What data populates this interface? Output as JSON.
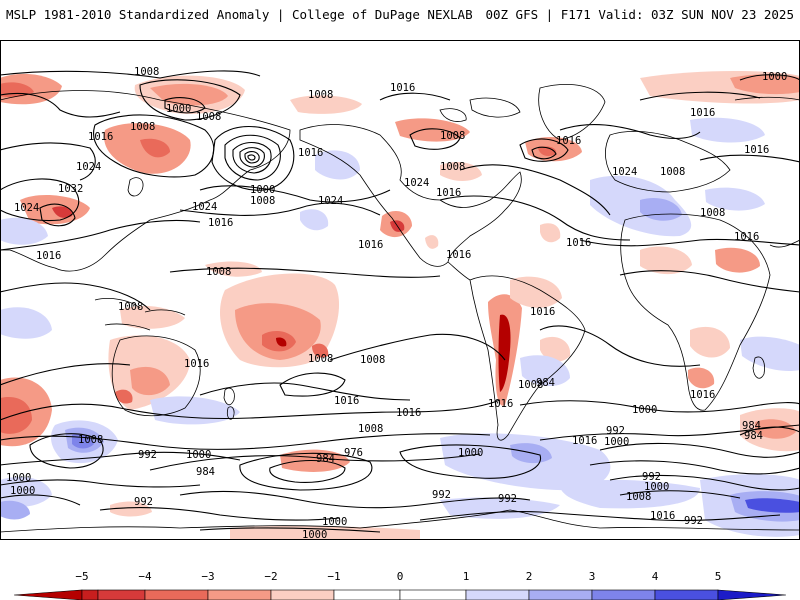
{
  "header": {
    "title_left": "MSLP 1981-2010 Standardized Anomaly | College of DuPage NEXLAB",
    "title_right": "00Z GFS | F171 Valid: 03Z SUN NOV 23 2025"
  },
  "colors": {
    "neg5": "#b40000",
    "neg4": "#d63a3a",
    "neg3": "#e96a5a",
    "neg2": "#f59a86",
    "neg1": "#fbcfc3",
    "zero": "#ffffff",
    "pos1": "#d5d8fb",
    "pos2": "#a8aef3",
    "pos3": "#7e84ea",
    "pos4": "#4a50e0",
    "pos5": "#1c1cc8",
    "contour": "#000000",
    "coast": "#000000"
  },
  "colorbar": {
    "ticks": [
      "−5",
      "−4",
      "−3",
      "−2",
      "−1",
      "0",
      "1",
      "2",
      "3",
      "4",
      "5"
    ]
  },
  "isobar_labels": [
    {
      "id": "l1",
      "text": "1008"
    },
    {
      "id": "l2",
      "text": "1016"
    },
    {
      "id": "l3",
      "text": "1008"
    },
    {
      "id": "l4",
      "text": "1016"
    },
    {
      "id": "l5",
      "text": "1000"
    },
    {
      "id": "l6",
      "text": "1000"
    },
    {
      "id": "l7",
      "text": "1008"
    },
    {
      "id": "l8",
      "text": "1016"
    },
    {
      "id": "l9",
      "text": "1008"
    },
    {
      "id": "l10",
      "text": "1016"
    },
    {
      "id": "l11",
      "text": "1008"
    },
    {
      "id": "l12",
      "text": "1024"
    },
    {
      "id": "l13",
      "text": "1032"
    },
    {
      "id": "l14",
      "text": "1024"
    },
    {
      "id": "l15",
      "text": "1016"
    },
    {
      "id": "l16",
      "text": "1000"
    },
    {
      "id": "l17",
      "text": "1008"
    },
    {
      "id": "l18",
      "text": "1024"
    },
    {
      "id": "l19",
      "text": "1016"
    },
    {
      "id": "l20",
      "text": "1024"
    },
    {
      "id": "l21",
      "text": "1024"
    },
    {
      "id": "l22",
      "text": "1016"
    },
    {
      "id": "l23",
      "text": "1016"
    },
    {
      "id": "l24",
      "text": "1016"
    },
    {
      "id": "l25",
      "text": "1008"
    },
    {
      "id": "l26",
      "text": "1016"
    },
    {
      "id": "l27",
      "text": "1008"
    },
    {
      "id": "l28",
      "text": "1016"
    },
    {
      "id": "l29",
      "text": "1024"
    },
    {
      "id": "l30",
      "text": "1008"
    },
    {
      "id": "l31",
      "text": "1016"
    },
    {
      "id": "l32",
      "text": "1016"
    },
    {
      "id": "l33",
      "text": "1008"
    },
    {
      "id": "l34",
      "text": "1008"
    },
    {
      "id": "l35",
      "text": "1016"
    },
    {
      "id": "l36",
      "text": "1008"
    },
    {
      "id": "l37",
      "text": "1008"
    },
    {
      "id": "l38",
      "text": "1016"
    },
    {
      "id": "l39",
      "text": "1008"
    },
    {
      "id": "l40",
      "text": "1016"
    },
    {
      "id": "l41",
      "text": "1016"
    },
    {
      "id": "l42",
      "text": "1016"
    },
    {
      "id": "l43",
      "text": "1008"
    },
    {
      "id": "l44",
      "text": "1016"
    },
    {
      "id": "l45",
      "text": "1000"
    },
    {
      "id": "l46",
      "text": "1008"
    },
    {
      "id": "l47",
      "text": "1000"
    },
    {
      "id": "l48",
      "text": "992"
    },
    {
      "id": "l49",
      "text": "984"
    },
    {
      "id": "l50",
      "text": "976"
    },
    {
      "id": "l51",
      "text": "984"
    },
    {
      "id": "l52",
      "text": "992"
    },
    {
      "id": "l53",
      "text": "1000"
    },
    {
      "id": "l54",
      "text": "992"
    },
    {
      "id": "l55",
      "text": "1000"
    },
    {
      "id": "l56",
      "text": "1000"
    },
    {
      "id": "l57",
      "text": "992"
    },
    {
      "id": "l58",
      "text": "1000"
    },
    {
      "id": "l59",
      "text": "1000"
    },
    {
      "id": "l60",
      "text": "992"
    },
    {
      "id": "l61",
      "text": "984"
    },
    {
      "id": "l62",
      "text": "984"
    },
    {
      "id": "l63",
      "text": "992"
    },
    {
      "id": "l64",
      "text": "1000"
    },
    {
      "id": "l65",
      "text": "1008"
    },
    {
      "id": "l66",
      "text": "1016"
    },
    {
      "id": "l67",
      "text": "992"
    },
    {
      "id": "l68",
      "text": "984"
    },
    {
      "id": "l69",
      "text": "1016"
    },
    {
      "id": "l70",
      "text": "1000"
    }
  ]
}
